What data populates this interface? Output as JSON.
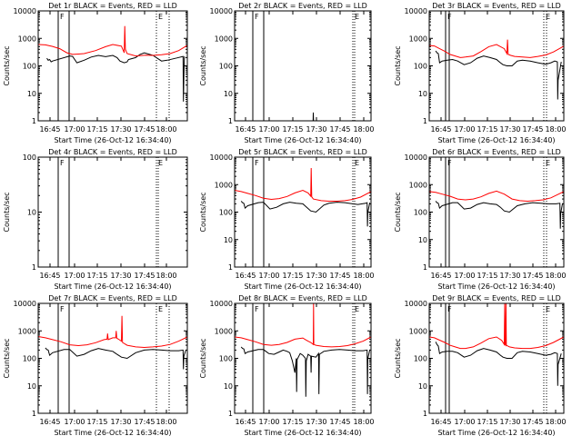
{
  "figure": {
    "marker_labels": [
      "F",
      "E"
    ]
  },
  "chart_data": [
    {
      "type": "line",
      "title": "Det 1r BLACK = Events, RED = LLD",
      "xlabel": "Start Time (26-Oct-12 16:34:40)",
      "ylabel": "Counts/sec",
      "xtick_labels": [
        "16:45",
        "17:00",
        "17:15",
        "17:30",
        "17:45",
        "18:00"
      ],
      "ylim": [
        1,
        10000
      ],
      "yscale": "log",
      "ytick_labels": [
        "1",
        "10",
        "100",
        "1000",
        "10000"
      ],
      "series": [
        {
          "name": "Events",
          "color": "#000000",
          "x_minutes": [
            6,
            7,
            8,
            9,
            10,
            22,
            24,
            27,
            32,
            37,
            42,
            47,
            52,
            55,
            57,
            60,
            62,
            63,
            64,
            68,
            71,
            74,
            80,
            86,
            90,
            94,
            97,
            101,
            101.3,
            101.6,
            102
          ],
          "y": [
            190,
            160,
            170,
            140,
            150,
            230,
            220,
            130,
            160,
            210,
            240,
            215,
            240,
            200,
            150,
            130,
            140,
            170,
            175,
            200,
            260,
            300,
            240,
            150,
            160,
            180,
            195,
            220,
            5,
            40,
            220
          ]
        },
        {
          "name": "LLD",
          "color": "#ff0000",
          "x_minutes": [
            0,
            5,
            10,
            15,
            20,
            24,
            28,
            32,
            40,
            47,
            52,
            58,
            60,
            60.4,
            60.8,
            62,
            68,
            75,
            80,
            86,
            92,
            98,
            104
          ],
          "y": [
            600,
            580,
            510,
            420,
            300,
            260,
            270,
            280,
            360,
            500,
            600,
            520,
            300,
            2800,
            400,
            280,
            230,
            245,
            240,
            255,
            280,
            360,
            560
          ]
        }
      ]
    },
    {
      "type": "line",
      "title": "Det 2r BLACK = Events, RED = LLD",
      "xlabel": "Start Time (26-Oct-12 16:34:40)",
      "ylabel": "Counts/sec",
      "xtick_labels": [
        "16:45",
        "17:00",
        "17:15",
        "17:30",
        "17:45",
        "18:00"
      ],
      "ylim": [
        1,
        10000
      ],
      "yscale": "log",
      "ytick_labels": [
        "1",
        "10",
        "100",
        "1000",
        "10000"
      ],
      "series": [
        {
          "name": "Events",
          "color": "#000000",
          "x_minutes": [
            59.8,
            60,
            60.2
          ],
          "y": [
            1,
            2,
            1
          ]
        }
      ]
    },
    {
      "type": "line",
      "title": "Det 3r BLACK = Events, RED = LLD",
      "xlabel": "Start Time (26-Oct-12 16:34:40)",
      "ylabel": "Counts/sec",
      "xtick_labels": [
        "16:45",
        "17:00",
        "17:15",
        "17:30",
        "17:45",
        "18:00"
      ],
      "ylim": [
        1,
        10000
      ],
      "yscale": "log",
      "ytick_labels": [
        "1",
        "10",
        "100",
        "1000",
        "10000"
      ],
      "series": [
        {
          "name": "Events",
          "color": "#000000",
          "x_minutes": [
            5,
            6,
            7,
            8,
            10,
            14,
            18,
            22,
            27,
            32,
            37,
            42,
            47,
            52,
            55,
            57,
            60,
            64,
            68,
            72,
            78,
            84,
            90,
            94,
            97,
            99,
            99.3,
            99.6,
            102
          ],
          "y": [
            350,
            300,
            280,
            130,
            150,
            160,
            170,
            150,
            110,
            130,
            190,
            230,
            200,
            170,
            130,
            110,
            100,
            100,
            150,
            160,
            150,
            130,
            115,
            130,
            150,
            140,
            6,
            30,
            140
          ]
        },
        {
          "name": "LLD",
          "color": "#ff0000",
          "x_minutes": [
            0,
            4,
            8,
            12,
            16,
            20,
            24,
            28,
            34,
            40,
            46,
            52,
            58,
            60,
            60.5,
            61,
            63,
            66,
            72,
            78,
            84,
            90,
            96,
            104
          ],
          "y": [
            550,
            530,
            420,
            340,
            260,
            230,
            200,
            210,
            230,
            330,
            500,
            600,
            420,
            280,
            900,
            260,
            240,
            220,
            210,
            200,
            220,
            250,
            320,
            520
          ]
        }
      ]
    },
    {
      "type": "line",
      "title": "Det 4r BLACK = Events, RED = LLD",
      "xlabel": "Start Time (26-Oct-12 16:34:40)",
      "ylabel": "Counts/sec",
      "xtick_labels": [
        "16:45",
        "17:00",
        "17:15",
        "17:30",
        "17:45",
        "18:00"
      ],
      "ylim": [
        1,
        100
      ],
      "yscale": "log",
      "ytick_labels": [
        "1",
        "10",
        "100"
      ],
      "series": []
    },
    {
      "type": "line",
      "title": "Det 5r BLACK = Events, RED = LLD",
      "xlabel": "Start Time (26-Oct-12 16:34:40)",
      "ylabel": "Counts/sec",
      "xtick_labels": [
        "16:45",
        "17:00",
        "17:15",
        "17:30",
        "17:45",
        "18:00"
      ],
      "ylim": [
        1,
        10000
      ],
      "yscale": "log",
      "ytick_labels": [
        "1",
        "10",
        "100",
        "1000",
        "10000"
      ],
      "series": [
        {
          "name": "Events",
          "color": "#000000",
          "x_minutes": [
            5,
            6,
            7,
            8,
            10,
            18,
            22,
            27,
            32,
            37,
            42,
            47,
            52,
            55,
            58,
            62,
            68,
            72,
            78,
            84,
            90,
            94,
            100,
            101,
            101.3,
            101.6,
            103
          ],
          "y": [
            250,
            220,
            210,
            140,
            170,
            220,
            230,
            130,
            150,
            200,
            230,
            210,
            200,
            150,
            110,
            100,
            180,
            210,
            230,
            220,
            200,
            190,
            210,
            220,
            30,
            100,
            220
          ]
        },
        {
          "name": "LLD",
          "color": "#ff0000",
          "x_minutes": [
            0,
            5,
            10,
            16,
            22,
            28,
            34,
            40,
            46,
            52,
            56,
            58,
            58.4,
            58.8,
            60,
            66,
            72,
            78,
            84,
            90,
            96,
            104
          ],
          "y": [
            620,
            560,
            480,
            400,
            320,
            290,
            310,
            370,
            500,
            620,
            500,
            380,
            4000,
            360,
            300,
            260,
            250,
            250,
            260,
            290,
            350,
            560
          ]
        }
      ]
    },
    {
      "type": "line",
      "title": "Det 6r BLACK = Events, RED = LLD",
      "xlabel": "Start Time (26-Oct-12 16:34:40)",
      "ylabel": "Counts/sec",
      "xtick_labels": [
        "16:45",
        "17:00",
        "17:15",
        "17:30",
        "17:45",
        "18:00"
      ],
      "ylim": [
        1,
        10000
      ],
      "yscale": "log",
      "ytick_labels": [
        "1",
        "10",
        "100",
        "1000",
        "10000"
      ],
      "series": [
        {
          "name": "Events",
          "color": "#000000",
          "x_minutes": [
            5,
            6,
            7,
            8,
            10,
            18,
            22,
            27,
            32,
            37,
            42,
            47,
            52,
            55,
            58,
            62,
            68,
            74,
            80,
            86,
            92,
            98,
            101,
            101.3,
            101.6,
            103
          ],
          "y": [
            250,
            220,
            210,
            140,
            170,
            220,
            220,
            130,
            140,
            190,
            220,
            200,
            190,
            150,
            110,
            100,
            170,
            200,
            220,
            210,
            200,
            200,
            210,
            25,
            90,
            210
          ]
        },
        {
          "name": "LLD",
          "color": "#ff0000",
          "x_minutes": [
            0,
            5,
            10,
            16,
            22,
            28,
            34,
            40,
            46,
            52,
            58,
            64,
            70,
            76,
            82,
            88,
            94,
            100,
            104
          ],
          "y": [
            560,
            520,
            450,
            380,
            300,
            280,
            300,
            360,
            480,
            580,
            450,
            300,
            260,
            250,
            260,
            280,
            330,
            450,
            560
          ]
        }
      ]
    },
    {
      "type": "line",
      "title": "Det 7r BLACK = Events, RED = LLD",
      "xlabel": "Start Time (26-Oct-12 16:34:40)",
      "ylabel": "Counts/sec",
      "xtick_labels": [
        "16:45",
        "17:00",
        "17:15",
        "17:30",
        "17:45",
        "18:00"
      ],
      "ylim": [
        1,
        10000
      ],
      "yscale": "log",
      "ytick_labels": [
        "1",
        "10",
        "100",
        "1000",
        "10000"
      ],
      "series": [
        {
          "name": "Events",
          "color": "#000000",
          "x_minutes": [
            5,
            6,
            7,
            8,
            10,
            18,
            22,
            27,
            32,
            37,
            42,
            47,
            52,
            55,
            58,
            62,
            68,
            74,
            80,
            86,
            92,
            98,
            101,
            101.3,
            101.6,
            103
          ],
          "y": [
            240,
            210,
            200,
            130,
            160,
            210,
            210,
            120,
            140,
            190,
            230,
            200,
            180,
            140,
            110,
            100,
            160,
            200,
            210,
            200,
            190,
            190,
            200,
            40,
            120,
            200
          ]
        },
        {
          "name": "LLD",
          "color": "#ff0000",
          "x_minutes": [
            0,
            5,
            10,
            16,
            22,
            28,
            34,
            40,
            46,
            48,
            48.4,
            48.8,
            52,
            54,
            54.4,
            54.8,
            56,
            58,
            58.4,
            58.8,
            62,
            68,
            74,
            80,
            86,
            92,
            98,
            104
          ],
          "y": [
            620,
            560,
            480,
            400,
            310,
            290,
            310,
            370,
            480,
            500,
            800,
            480,
            560,
            560,
            1000,
            540,
            500,
            420,
            3500,
            380,
            300,
            260,
            250,
            260,
            280,
            320,
            420,
            600
          ]
        }
      ]
    },
    {
      "type": "line",
      "title": "Det 8r BLACK = Events, RED = LLD",
      "xlabel": "Start Time (26-Oct-12 16:34:40)",
      "ylabel": "Counts/sec",
      "xtick_labels": [
        "16:45",
        "17:00",
        "17:15",
        "17:30",
        "17:45",
        "18:00"
      ],
      "ylim": [
        1,
        10000
      ],
      "yscale": "log",
      "ytick_labels": [
        "1",
        "10",
        "100",
        "1000",
        "10000"
      ],
      "series": [
        {
          "name": "Events",
          "color": "#000000",
          "x_minutes": [
            5,
            6,
            7,
            8,
            10,
            18,
            22,
            26,
            30,
            34,
            37,
            40,
            42,
            44,
            46,
            47,
            47.3,
            47.6,
            50,
            52,
            54,
            54.3,
            54.6,
            56,
            58,
            58.3,
            58.6,
            62,
            64,
            64.3,
            64.6,
            68,
            74,
            80,
            86,
            92,
            98,
            101,
            101.3,
            101.6,
            103
          ],
          "y": [
            260,
            230,
            220,
            150,
            170,
            210,
            210,
            150,
            140,
            170,
            200,
            180,
            160,
            80,
            30,
            100,
            6,
            90,
            150,
            130,
            100,
            4,
            80,
            140,
            120,
            30,
            120,
            110,
            150,
            5,
            140,
            180,
            200,
            210,
            200,
            190,
            190,
            200,
            5,
            100,
            200
          ]
        },
        {
          "name": "LLD",
          "color": "#ff0000",
          "x_minutes": [
            0,
            5,
            10,
            16,
            22,
            28,
            34,
            40,
            46,
            52,
            54,
            56,
            58,
            60,
            60.2,
            60.4,
            62,
            68,
            74,
            80,
            86,
            92,
            98,
            104
          ],
          "y": [
            600,
            560,
            480,
            400,
            320,
            300,
            320,
            380,
            500,
            550,
            480,
            420,
            380,
            320,
            10000,
            320,
            300,
            270,
            260,
            270,
            290,
            340,
            420,
            600
          ]
        }
      ]
    },
    {
      "type": "line",
      "title": "Det 9r BLACK = Events, RED = LLD",
      "xlabel": "Start Time (26-Oct-12 16:34:40)",
      "ylabel": "Counts/sec",
      "xtick_labels": [
        "16:45",
        "17:00",
        "17:15",
        "17:30",
        "17:45",
        "18:00"
      ],
      "ylim": [
        1,
        10000
      ],
      "yscale": "log",
      "ytick_labels": [
        "1",
        "10",
        "100",
        "1000",
        "10000"
      ],
      "series": [
        {
          "name": "Events",
          "color": "#000000",
          "x_minutes": [
            5,
            6,
            7,
            8,
            10,
            14,
            18,
            22,
            27,
            32,
            37,
            42,
            47,
            52,
            55,
            57,
            60,
            64,
            68,
            72,
            78,
            84,
            90,
            94,
            97,
            99,
            99.3,
            99.6,
            102
          ],
          "y": [
            400,
            320,
            280,
            150,
            170,
            180,
            180,
            160,
            110,
            130,
            190,
            230,
            200,
            170,
            130,
            110,
            100,
            100,
            160,
            180,
            170,
            150,
            130,
            140,
            160,
            150,
            10,
            60,
            150
          ]
        },
        {
          "name": "LLD",
          "color": "#ff0000",
          "x_minutes": [
            0,
            4,
            8,
            12,
            16,
            20,
            24,
            28,
            34,
            40,
            46,
            52,
            56,
            58,
            58.3,
            58.6,
            59,
            59.3,
            59.6,
            62,
            66,
            72,
            78,
            84,
            90,
            96,
            104
          ],
          "y": [
            600,
            560,
            460,
            380,
            300,
            260,
            230,
            230,
            260,
            360,
            520,
            600,
            450,
            320,
            10000,
            320,
            300,
            10000,
            300,
            260,
            240,
            230,
            230,
            250,
            290,
            380,
            600
          ]
        }
      ]
    }
  ]
}
